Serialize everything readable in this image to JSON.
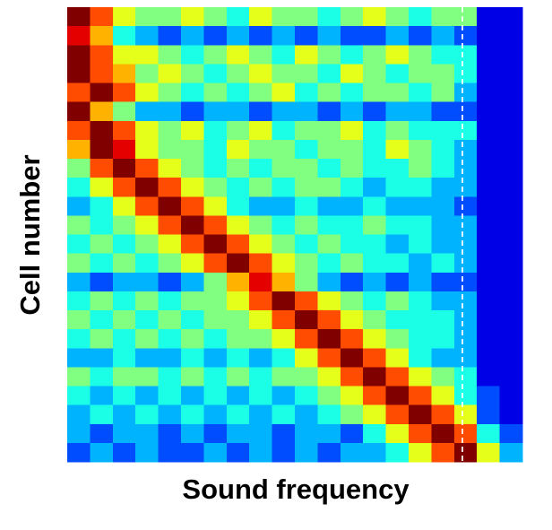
{
  "chart_data": {
    "type": "heatmap",
    "x_label": "Sound frequency",
    "y_label": "Cell number",
    "colormap": "jet",
    "zlim": [
      0,
      10
    ],
    "values": [
      [
        10,
        8,
        6,
        5,
        5,
        6,
        5,
        4,
        6,
        5,
        5,
        4,
        5,
        6,
        5,
        4,
        5,
        5,
        1,
        1
      ],
      [
        9,
        7,
        4,
        3,
        2,
        3,
        2,
        3,
        2,
        3,
        2,
        3,
        2,
        2,
        3,
        2,
        3,
        2,
        1,
        1
      ],
      [
        10,
        8,
        6,
        6,
        5,
        4,
        5,
        6,
        5,
        4,
        6,
        5,
        4,
        5,
        6,
        5,
        4,
        4,
        1,
        1
      ],
      [
        10,
        8,
        7,
        5,
        6,
        5,
        4,
        5,
        6,
        5,
        5,
        4,
        6,
        5,
        4,
        5,
        5,
        4,
        1,
        1
      ],
      [
        8,
        10,
        8,
        6,
        5,
        4,
        5,
        4,
        5,
        6,
        4,
        5,
        4,
        5,
        5,
        4,
        5,
        3,
        1,
        1
      ],
      [
        10,
        7,
        5,
        3,
        3,
        2,
        3,
        3,
        2,
        3,
        3,
        2,
        3,
        2,
        3,
        3,
        2,
        2,
        1,
        1
      ],
      [
        8,
        10,
        8,
        6,
        5,
        6,
        4,
        5,
        6,
        4,
        5,
        5,
        6,
        4,
        5,
        4,
        4,
        4,
        1,
        1
      ],
      [
        7,
        10,
        9,
        6,
        5,
        5,
        4,
        6,
        5,
        5,
        4,
        5,
        5,
        4,
        6,
        5,
        4,
        3,
        1,
        1
      ],
      [
        5,
        8,
        10,
        8,
        6,
        5,
        4,
        5,
        4,
        5,
        5,
        4,
        5,
        4,
        4,
        5,
        4,
        3,
        1,
        1
      ],
      [
        4,
        6,
        8,
        10,
        8,
        6,
        5,
        4,
        5,
        4,
        5,
        5,
        4,
        3,
        4,
        4,
        3,
        3,
        1,
        1
      ],
      [
        3,
        4,
        6,
        8,
        10,
        8,
        6,
        4,
        3,
        3,
        4,
        3,
        3,
        4,
        3,
        3,
        3,
        2,
        1,
        1
      ],
      [
        5,
        4,
        5,
        6,
        8,
        10,
        8,
        6,
        5,
        4,
        5,
        4,
        4,
        5,
        4,
        4,
        3,
        3,
        1,
        1
      ],
      [
        4,
        5,
        4,
        5,
        6,
        8,
        10,
        8,
        6,
        5,
        4,
        5,
        4,
        4,
        3,
        4,
        3,
        3,
        1,
        1
      ],
      [
        5,
        4,
        5,
        4,
        5,
        6,
        8,
        10,
        8,
        6,
        5,
        4,
        5,
        4,
        4,
        3,
        4,
        3,
        1,
        1
      ],
      [
        3,
        2,
        3,
        3,
        2,
        3,
        5,
        7,
        9,
        7,
        5,
        3,
        2,
        3,
        2,
        3,
        2,
        2,
        1,
        1
      ],
      [
        4,
        5,
        4,
        5,
        4,
        5,
        5,
        6,
        8,
        10,
        8,
        6,
        5,
        4,
        5,
        4,
        3,
        3,
        1,
        1
      ],
      [
        5,
        4,
        5,
        4,
        5,
        4,
        5,
        5,
        6,
        8,
        10,
        8,
        6,
        5,
        4,
        4,
        4,
        3,
        1,
        1
      ],
      [
        4,
        5,
        4,
        5,
        4,
        5,
        4,
        5,
        5,
        6,
        8,
        10,
        8,
        6,
        5,
        4,
        4,
        3,
        1,
        1
      ],
      [
        3,
        3,
        4,
        3,
        3,
        4,
        3,
        4,
        3,
        4,
        6,
        8,
        10,
        8,
        6,
        4,
        3,
        3,
        1,
        1
      ],
      [
        5,
        4,
        5,
        5,
        4,
        5,
        4,
        5,
        4,
        5,
        5,
        6,
        8,
        10,
        8,
        6,
        5,
        4,
        1,
        1
      ],
      [
        4,
        3,
        4,
        3,
        4,
        3,
        4,
        3,
        4,
        3,
        4,
        5,
        6,
        8,
        10,
        8,
        6,
        4,
        2,
        1
      ],
      [
        3,
        4,
        3,
        4,
        3,
        4,
        3,
        4,
        3,
        4,
        3,
        4,
        5,
        6,
        8,
        10,
        8,
        6,
        2,
        1
      ],
      [
        3,
        2,
        3,
        3,
        2,
        3,
        2,
        3,
        3,
        2,
        3,
        3,
        2,
        4,
        6,
        8,
        10,
        8,
        4,
        2
      ],
      [
        2,
        3,
        2,
        3,
        2,
        2,
        3,
        2,
        3,
        2,
        3,
        2,
        3,
        3,
        4,
        6,
        8,
        10,
        6,
        3
      ]
    ]
  }
}
